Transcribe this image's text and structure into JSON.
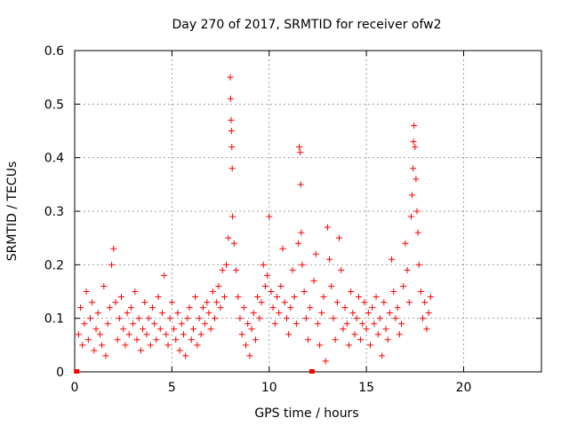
{
  "chart_data": {
    "type": "scatter",
    "title": "Day 270 of 2017, SRMTID for receiver ofw2",
    "xlabel": "GPS time / hours",
    "ylabel": "SRMTID / TECUs",
    "xlim": [
      0,
      24
    ],
    "ylim": [
      0,
      0.6
    ],
    "xticks": [
      0,
      5,
      10,
      15,
      20
    ],
    "yticks": [
      0,
      0.1,
      0.2,
      0.3,
      0.4,
      0.5,
      0.6
    ],
    "grid": true,
    "color": "#ff0000",
    "marker": "plus",
    "series": [
      {
        "name": "SRMTID",
        "points": [
          [
            0.1,
            0.0
          ],
          [
            12.2,
            0.0
          ],
          [
            0.2,
            0.07
          ],
          [
            0.3,
            0.12
          ],
          [
            0.4,
            0.05
          ],
          [
            0.5,
            0.09
          ],
          [
            0.6,
            0.15
          ],
          [
            0.7,
            0.06
          ],
          [
            0.8,
            0.1
          ],
          [
            0.9,
            0.13
          ],
          [
            1.0,
            0.04
          ],
          [
            1.1,
            0.08
          ],
          [
            1.2,
            0.11
          ],
          [
            1.3,
            0.07
          ],
          [
            1.4,
            0.05
          ],
          [
            1.5,
            0.16
          ],
          [
            1.6,
            0.03
          ],
          [
            1.7,
            0.09
          ],
          [
            1.8,
            0.12
          ],
          [
            1.9,
            0.2
          ],
          [
            2.0,
            0.23
          ],
          [
            2.1,
            0.13
          ],
          [
            2.2,
            0.06
          ],
          [
            2.3,
            0.1
          ],
          [
            2.4,
            0.14
          ],
          [
            2.5,
            0.08
          ],
          [
            2.6,
            0.05
          ],
          [
            2.7,
            0.11
          ],
          [
            2.8,
            0.07
          ],
          [
            2.9,
            0.12
          ],
          [
            3.0,
            0.09
          ],
          [
            3.1,
            0.15
          ],
          [
            3.2,
            0.06
          ],
          [
            3.3,
            0.1
          ],
          [
            3.4,
            0.04
          ],
          [
            3.5,
            0.08
          ],
          [
            3.6,
            0.13
          ],
          [
            3.7,
            0.07
          ],
          [
            3.8,
            0.1
          ],
          [
            3.9,
            0.05
          ],
          [
            4.0,
            0.12
          ],
          [
            4.1,
            0.09
          ],
          [
            4.2,
            0.06
          ],
          [
            4.3,
            0.14
          ],
          [
            4.4,
            0.08
          ],
          [
            4.5,
            0.11
          ],
          [
            4.6,
            0.18
          ],
          [
            4.7,
            0.07
          ],
          [
            4.8,
            0.05
          ],
          [
            4.9,
            0.1
          ],
          [
            5.0,
            0.13
          ],
          [
            5.1,
            0.08
          ],
          [
            5.2,
            0.06
          ],
          [
            5.3,
            0.11
          ],
          [
            5.4,
            0.04
          ],
          [
            5.5,
            0.09
          ],
          [
            5.6,
            0.07
          ],
          [
            5.7,
            0.03
          ],
          [
            5.8,
            0.1
          ],
          [
            5.9,
            0.12
          ],
          [
            6.0,
            0.06
          ],
          [
            6.1,
            0.08
          ],
          [
            6.2,
            0.14
          ],
          [
            6.3,
            0.05
          ],
          [
            6.4,
            0.1
          ],
          [
            6.5,
            0.07
          ],
          [
            6.6,
            0.12
          ],
          [
            6.7,
            0.09
          ],
          [
            6.8,
            0.13
          ],
          [
            6.9,
            0.11
          ],
          [
            7.0,
            0.08
          ],
          [
            7.1,
            0.15
          ],
          [
            7.2,
            0.1
          ],
          [
            7.3,
            0.13
          ],
          [
            7.4,
            0.16
          ],
          [
            7.5,
            0.12
          ],
          [
            7.6,
            0.19
          ],
          [
            7.7,
            0.14
          ],
          [
            7.8,
            0.2
          ],
          [
            7.9,
            0.25
          ],
          [
            8.0,
            0.55
          ],
          [
            8.02,
            0.51
          ],
          [
            8.04,
            0.47
          ],
          [
            8.06,
            0.45
          ],
          [
            8.08,
            0.42
          ],
          [
            8.1,
            0.38
          ],
          [
            8.12,
            0.29
          ],
          [
            8.2,
            0.24
          ],
          [
            8.3,
            0.19
          ],
          [
            8.4,
            0.14
          ],
          [
            8.5,
            0.1
          ],
          [
            8.6,
            0.07
          ],
          [
            8.7,
            0.12
          ],
          [
            8.8,
            0.05
          ],
          [
            8.9,
            0.09
          ],
          [
            9.0,
            0.03
          ],
          [
            9.1,
            0.08
          ],
          [
            9.2,
            0.11
          ],
          [
            9.3,
            0.06
          ],
          [
            9.4,
            0.14
          ],
          [
            9.5,
            0.1
          ],
          [
            9.6,
            0.13
          ],
          [
            9.7,
            0.2
          ],
          [
            9.8,
            0.16
          ],
          [
            9.9,
            0.18
          ],
          [
            10.0,
            0.29
          ],
          [
            10.1,
            0.15
          ],
          [
            10.2,
            0.12
          ],
          [
            10.3,
            0.09
          ],
          [
            10.4,
            0.14
          ],
          [
            10.5,
            0.11
          ],
          [
            10.6,
            0.16
          ],
          [
            10.7,
            0.23
          ],
          [
            10.8,
            0.13
          ],
          [
            10.9,
            0.1
          ],
          [
            11.0,
            0.07
          ],
          [
            11.1,
            0.12
          ],
          [
            11.2,
            0.19
          ],
          [
            11.3,
            0.14
          ],
          [
            11.4,
            0.09
          ],
          [
            11.5,
            0.24
          ],
          [
            11.55,
            0.42
          ],
          [
            11.6,
            0.41
          ],
          [
            11.62,
            0.35
          ],
          [
            11.65,
            0.26
          ],
          [
            11.7,
            0.2
          ],
          [
            11.8,
            0.15
          ],
          [
            11.9,
            0.1
          ],
          [
            12.0,
            0.06
          ],
          [
            12.1,
            0.12
          ],
          [
            12.3,
            0.17
          ],
          [
            12.4,
            0.22
          ],
          [
            12.5,
            0.09
          ],
          [
            12.6,
            0.05
          ],
          [
            12.7,
            0.11
          ],
          [
            12.8,
            0.14
          ],
          [
            12.9,
            0.02
          ],
          [
            13.0,
            0.27
          ],
          [
            13.1,
            0.21
          ],
          [
            13.2,
            0.16
          ],
          [
            13.3,
            0.1
          ],
          [
            13.4,
            0.06
          ],
          [
            13.5,
            0.13
          ],
          [
            13.6,
            0.25
          ],
          [
            13.7,
            0.19
          ],
          [
            13.8,
            0.08
          ],
          [
            13.9,
            0.12
          ],
          [
            14.0,
            0.09
          ],
          [
            14.1,
            0.05
          ],
          [
            14.2,
            0.15
          ],
          [
            14.3,
            0.11
          ],
          [
            14.4,
            0.07
          ],
          [
            14.5,
            0.1
          ],
          [
            14.6,
            0.14
          ],
          [
            14.7,
            0.06
          ],
          [
            14.8,
            0.09
          ],
          [
            14.9,
            0.13
          ],
          [
            15.0,
            0.08
          ],
          [
            15.1,
            0.11
          ],
          [
            15.2,
            0.05
          ],
          [
            15.3,
            0.12
          ],
          [
            15.4,
            0.09
          ],
          [
            15.5,
            0.14
          ],
          [
            15.6,
            0.07
          ],
          [
            15.7,
            0.1
          ],
          [
            15.8,
            0.03
          ],
          [
            15.9,
            0.13
          ],
          [
            16.0,
            0.08
          ],
          [
            16.1,
            0.06
          ],
          [
            16.2,
            0.11
          ],
          [
            16.3,
            0.21
          ],
          [
            16.4,
            0.15
          ],
          [
            16.5,
            0.1
          ],
          [
            16.6,
            0.12
          ],
          [
            16.7,
            0.07
          ],
          [
            16.8,
            0.09
          ],
          [
            16.9,
            0.16
          ],
          [
            17.0,
            0.24
          ],
          [
            17.1,
            0.19
          ],
          [
            17.2,
            0.13
          ],
          [
            17.3,
            0.29
          ],
          [
            17.35,
            0.33
          ],
          [
            17.4,
            0.38
          ],
          [
            17.42,
            0.43
          ],
          [
            17.45,
            0.46
          ],
          [
            17.5,
            0.42
          ],
          [
            17.55,
            0.36
          ],
          [
            17.6,
            0.3
          ],
          [
            17.65,
            0.26
          ],
          [
            17.7,
            0.2
          ],
          [
            17.8,
            0.15
          ],
          [
            17.9,
            0.1
          ],
          [
            18.0,
            0.13
          ],
          [
            18.1,
            0.08
          ],
          [
            18.2,
            0.11
          ],
          [
            18.3,
            0.14
          ]
        ]
      }
    ]
  }
}
